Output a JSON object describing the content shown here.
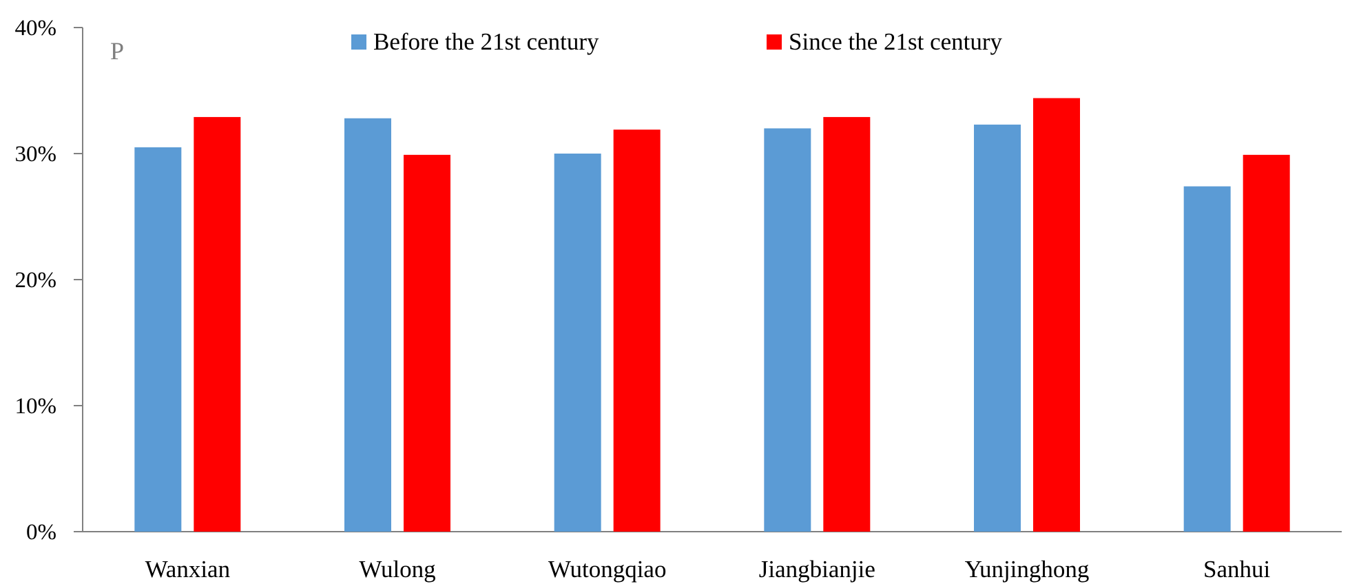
{
  "chart_data": {
    "type": "bar",
    "panel_label": "P",
    "categories": [
      "Wanxian",
      "Wulong",
      "Wutongqiao",
      "Jiangbianjie",
      "Yunjinghong",
      "Sanhui"
    ],
    "series": [
      {
        "name": "Before the 21st century",
        "color": "#5b9bd5",
        "values": [
          30.5,
          32.8,
          30.0,
          32.0,
          32.3,
          27.4
        ]
      },
      {
        "name": "Since the 21st century",
        "color": "#ff0000",
        "values": [
          32.9,
          29.9,
          31.9,
          32.9,
          34.4,
          29.9
        ]
      }
    ],
    "ylim": [
      0,
      40
    ],
    "yticks": [
      0,
      10,
      20,
      30,
      40
    ],
    "ytick_labels": [
      "0%",
      "10%",
      "20%",
      "30%",
      "40%"
    ],
    "xlabel": "",
    "ylabel": "",
    "grid": false,
    "legend_position": "top-center",
    "axis_color": "#808080"
  }
}
